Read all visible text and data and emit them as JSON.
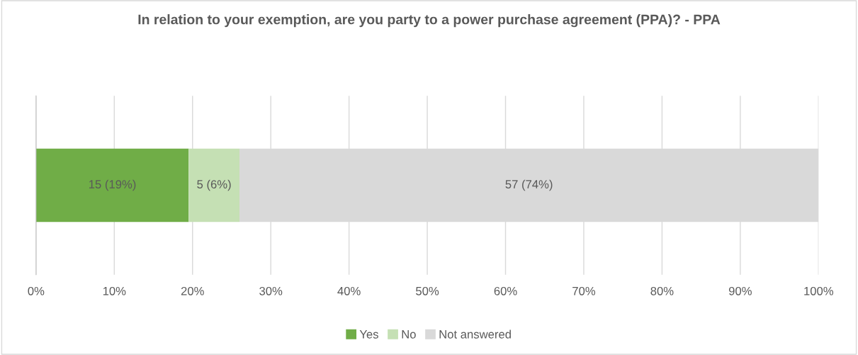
{
  "chart_data": {
    "type": "bar",
    "orientation": "horizontal",
    "stacked": true,
    "title": "In relation to your exemption, are you party to a power purchase agreement (PPA)? - PPA",
    "categories": [
      null
    ],
    "series": [
      {
        "name": "Yes",
        "color": "#70ad47",
        "values": [
          19.5
        ],
        "value_labels": [
          "15 (19%)"
        ]
      },
      {
        "name": "No",
        "color": "#c5e0b4",
        "values": [
          6.5
        ],
        "value_labels": [
          "5 (6%)"
        ]
      },
      {
        "name": "Not answered",
        "color": "#d9d9d9",
        "values": [
          74.0
        ],
        "value_labels": [
          "57 (74%)"
        ]
      }
    ],
    "xlim": [
      0,
      100
    ],
    "xticks": [
      {
        "value": 0,
        "label": "0%"
      },
      {
        "value": 10,
        "label": "10%"
      },
      {
        "value": 20,
        "label": "20%"
      },
      {
        "value": 30,
        "label": "30%"
      },
      {
        "value": 40,
        "label": "40%"
      },
      {
        "value": 50,
        "label": "50%"
      },
      {
        "value": 60,
        "label": "60%"
      },
      {
        "value": 70,
        "label": "70%"
      },
      {
        "value": 80,
        "label": "80%"
      },
      {
        "value": 90,
        "label": "90%"
      },
      {
        "value": 100,
        "label": "100%"
      }
    ],
    "grid": "x",
    "legend": "bottom"
  }
}
